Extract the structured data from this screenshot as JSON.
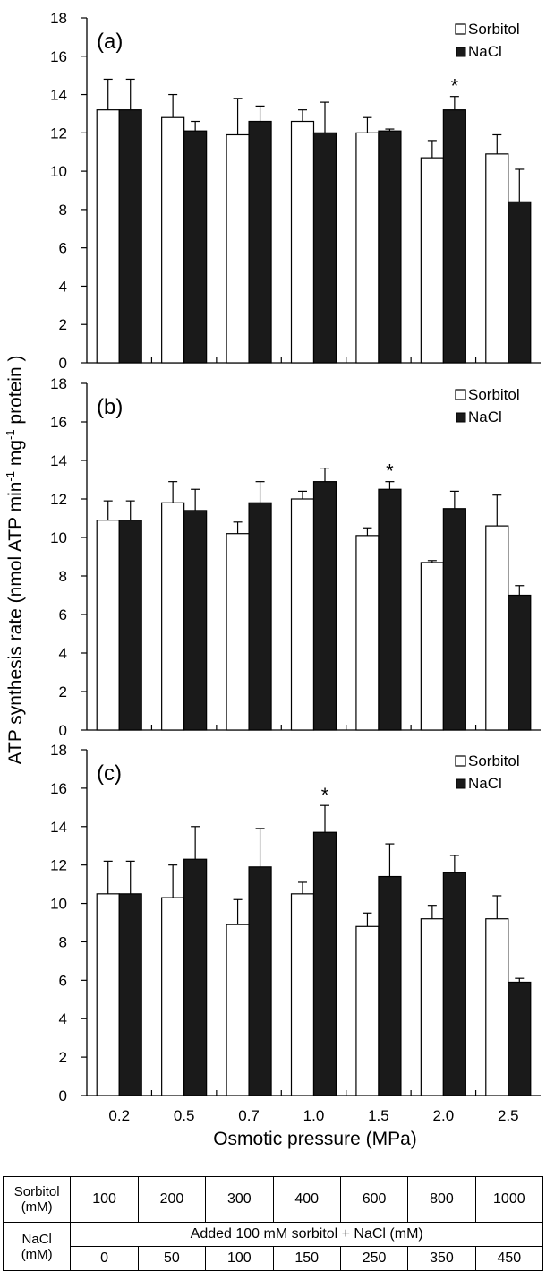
{
  "ylabel": "ATP synthesis rate (nmol ATP min",
  "ylabel_sup1": "-1",
  "ylabel_mid": " mg",
  "ylabel_sup2": "-1",
  "ylabel_end": " protein )",
  "xlabel": "Osmotic pressure (MPa)",
  "legend": {
    "sorbitol": "Sorbitol",
    "nacl": "NaCl"
  },
  "significance_marker": "*",
  "colors": {
    "sorbitol": "#ffffff",
    "nacl": "#1a1a1a",
    "axis": "#000000"
  },
  "chart_data": [
    {
      "type": "bar",
      "panel": "(a)",
      "categories": [
        "0.2",
        "0.5",
        "0.7",
        "1.0",
        "1.5",
        "2.0",
        "2.5"
      ],
      "ylim": [
        0,
        18
      ],
      "yticks": [
        0,
        2,
        4,
        6,
        8,
        10,
        12,
        14,
        16,
        18
      ],
      "legend_position": "top-right",
      "grid": false,
      "series": [
        {
          "name": "Sorbitol",
          "values": [
            13.2,
            12.8,
            11.9,
            12.6,
            12.0,
            10.7,
            10.9
          ],
          "errors": [
            1.6,
            1.2,
            1.9,
            0.6,
            0.8,
            0.9,
            1.0
          ]
        },
        {
          "name": "NaCl",
          "values": [
            13.2,
            12.1,
            12.6,
            12.0,
            12.1,
            13.2,
            8.4
          ],
          "errors": [
            1.6,
            0.5,
            0.8,
            1.6,
            0.1,
            0.7,
            1.7
          ]
        }
      ],
      "significant": [
        5
      ]
    },
    {
      "type": "bar",
      "panel": "(b)",
      "categories": [
        "0.2",
        "0.5",
        "0.7",
        "1.0",
        "1.5",
        "2.0",
        "2.5"
      ],
      "ylim": [
        0,
        18
      ],
      "yticks": [
        0,
        2,
        4,
        6,
        8,
        10,
        12,
        14,
        16,
        18
      ],
      "legend_position": "top-right",
      "grid": false,
      "series": [
        {
          "name": "Sorbitol",
          "values": [
            10.9,
            11.8,
            10.2,
            12.0,
            10.1,
            8.7,
            10.6
          ],
          "errors": [
            1.0,
            1.1,
            0.6,
            0.4,
            0.4,
            0.1,
            1.6
          ]
        },
        {
          "name": "NaCl",
          "values": [
            10.9,
            11.4,
            11.8,
            12.9,
            12.5,
            11.5,
            7.0
          ],
          "errors": [
            1.0,
            1.1,
            1.1,
            0.7,
            0.4,
            0.9,
            0.5
          ]
        }
      ],
      "significant": [
        4
      ]
    },
    {
      "type": "bar",
      "panel": "(c)",
      "categories": [
        "0.2",
        "0.5",
        "0.7",
        "1.0",
        "1.5",
        "2.0",
        "2.5"
      ],
      "ylim": [
        0,
        18
      ],
      "yticks": [
        0,
        2,
        4,
        6,
        8,
        10,
        12,
        14,
        16,
        18
      ],
      "legend_position": "top-right",
      "grid": false,
      "series": [
        {
          "name": "Sorbitol",
          "values": [
            10.5,
            10.3,
            8.9,
            10.5,
            8.8,
            9.2,
            9.2
          ],
          "errors": [
            1.7,
            1.7,
            1.3,
            0.6,
            0.7,
            0.7,
            1.2
          ]
        },
        {
          "name": "NaCl",
          "values": [
            10.5,
            12.3,
            11.9,
            13.7,
            11.4,
            11.6,
            5.9
          ],
          "errors": [
            1.7,
            1.7,
            2.0,
            1.4,
            1.7,
            0.9,
            0.2
          ]
        }
      ],
      "significant": [
        3
      ]
    }
  ],
  "table": {
    "sorbitol_header_line1": "Sorbitol",
    "sorbitol_header_line2": "(mM)",
    "sorbitol_values": [
      "100",
      "200",
      "300",
      "400",
      "600",
      "800",
      "1000"
    ],
    "nacl_header_line1": "NaCl",
    "nacl_header_line2": "(mM)",
    "nacl_note": "Added 100 mM sorbitol + NaCl (mM)",
    "nacl_values": [
      "0",
      "50",
      "100",
      "150",
      "250",
      "350",
      "450"
    ]
  }
}
